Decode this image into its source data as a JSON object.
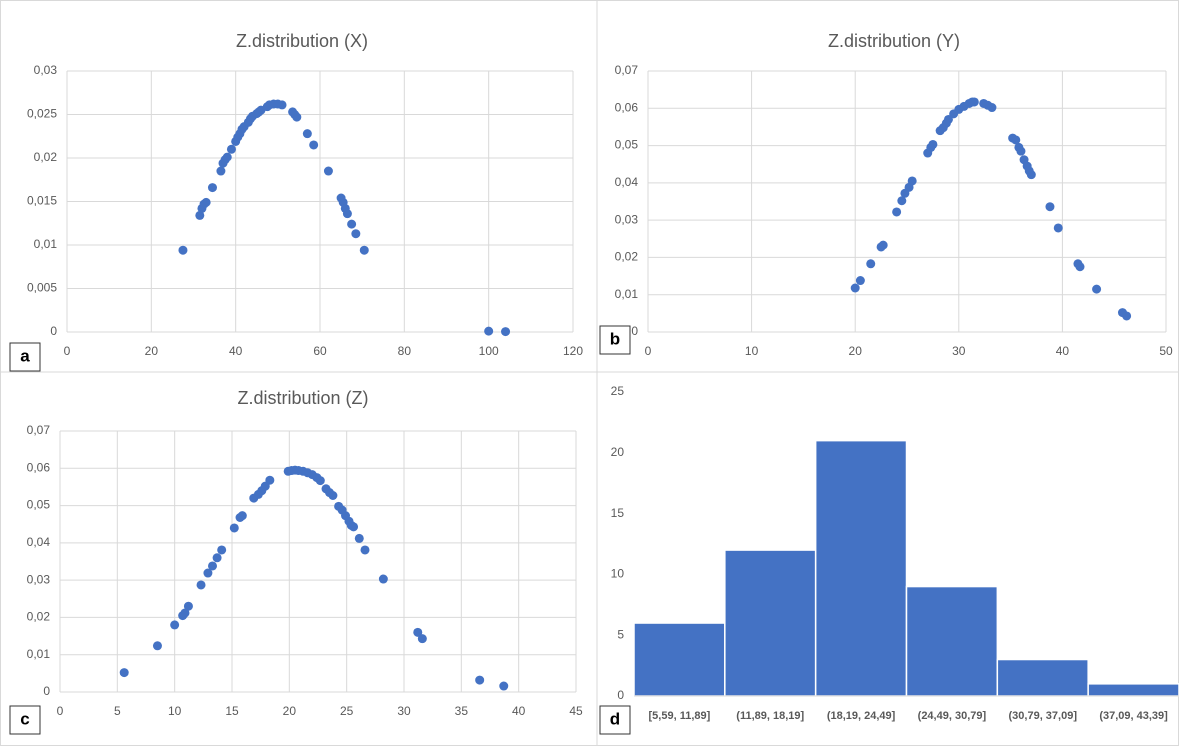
{
  "chart_data": [
    {
      "type": "scatter",
      "panel": "a",
      "title": "Z.distribution (X)",
      "color": "#4472c4",
      "grid": true,
      "xlim": [
        0,
        120
      ],
      "xticks": [
        0,
        20,
        40,
        60,
        80,
        100,
        120
      ],
      "ylim": [
        0,
        0.03
      ],
      "yticks": [
        0,
        {
          "value": 0.005,
          "label": "0,005"
        },
        {
          "value": 0.01,
          "label": "0,01"
        },
        {
          "value": 0.015,
          "label": "0,015"
        },
        {
          "value": 0.02,
          "label": "0,02"
        },
        {
          "value": 0.025,
          "label": "0,025"
        },
        {
          "value": 0.03,
          "label": "0,03"
        }
      ],
      "x": [
        27.5,
        31.5,
        32,
        32.5,
        33,
        34.5,
        36.5,
        37,
        37.5,
        38,
        39,
        40,
        40.5,
        41,
        41.5,
        42,
        43,
        43.5,
        44,
        45,
        45.5,
        46,
        47.5,
        48,
        49,
        50,
        51,
        53.5,
        54,
        54.5,
        57,
        58.5,
        62,
        65,
        65.5,
        66,
        66.5,
        67.5,
        68.5,
        70.5,
        100,
        104
      ],
      "values": [
        0.0094,
        0.0134,
        0.0142,
        0.0147,
        0.0149,
        0.0166,
        0.0185,
        0.0194,
        0.0198,
        0.0201,
        0.021,
        0.0219,
        0.0224,
        0.0228,
        0.0233,
        0.0236,
        0.0241,
        0.0245,
        0.0248,
        0.0251,
        0.0253,
        0.0255,
        0.0259,
        0.0261,
        0.0262,
        0.0262,
        0.0261,
        0.0253,
        0.025,
        0.0247,
        0.0228,
        0.0215,
        0.0185,
        0.0154,
        0.0149,
        0.0142,
        0.0136,
        0.0124,
        0.0113,
        0.0094,
        0.0001,
        5e-05
      ]
    },
    {
      "type": "scatter",
      "panel": "b",
      "title": "Z.distribution (Y)",
      "color": "#4472c4",
      "grid": true,
      "xlim": [
        0,
        50
      ],
      "xticks": [
        0,
        10,
        20,
        30,
        40,
        50
      ],
      "ylim": [
        0,
        0.07
      ],
      "yticks": [
        0,
        {
          "value": 0.01,
          "label": "0,01"
        },
        {
          "value": 0.02,
          "label": "0,02"
        },
        {
          "value": 0.03,
          "label": "0,03"
        },
        {
          "value": 0.04,
          "label": "0,04"
        },
        {
          "value": 0.05,
          "label": "0,05"
        },
        {
          "value": 0.06,
          "label": "0,06"
        },
        {
          "value": 0.07,
          "label": "0,07"
        }
      ],
      "x": [
        20,
        20.5,
        21.5,
        22.5,
        22.7,
        24,
        24.5,
        24.8,
        25.2,
        25.5,
        27,
        27.3,
        27.5,
        28.2,
        28.5,
        28.8,
        29,
        29.5,
        30,
        30.5,
        31,
        31.3,
        31.5,
        32.4,
        32.8,
        33.2,
        35.2,
        35.5,
        35.8,
        36,
        36.3,
        36.6,
        36.8,
        37,
        38.8,
        39.6,
        41.5,
        41.7,
        43.3,
        45.8,
        46.2
      ],
      "values": [
        0.0118,
        0.0138,
        0.0183,
        0.0228,
        0.0233,
        0.0322,
        0.0352,
        0.0372,
        0.0388,
        0.0405,
        0.048,
        0.0495,
        0.0503,
        0.054,
        0.0548,
        0.056,
        0.057,
        0.0585,
        0.0597,
        0.0605,
        0.0613,
        0.0617,
        0.0617,
        0.0613,
        0.0608,
        0.0602,
        0.052,
        0.0515,
        0.0495,
        0.0485,
        0.0462,
        0.0445,
        0.0432,
        0.0422,
        0.0336,
        0.0279,
        0.0183,
        0.0175,
        0.0115,
        0.0052,
        0.0043
      ]
    },
    {
      "type": "scatter",
      "panel": "c",
      "title": "Z.distribution (Z)",
      "color": "#4472c4",
      "grid": true,
      "xlim": [
        0,
        45
      ],
      "xticks": [
        0,
        5,
        10,
        15,
        20,
        25,
        30,
        35,
        40,
        45
      ],
      "ylim": [
        0,
        0.07
      ],
      "yticks": [
        0,
        {
          "value": 0.01,
          "label": "0,01"
        },
        {
          "value": 0.02,
          "label": "0,02"
        },
        {
          "value": 0.03,
          "label": "0,03"
        },
        {
          "value": 0.04,
          "label": "0,04"
        },
        {
          "value": 0.05,
          "label": "0,05"
        },
        {
          "value": 0.06,
          "label": "0,06"
        },
        {
          "value": 0.07,
          "label": "0,07"
        }
      ],
      "x": [
        5.6,
        8.5,
        10,
        10.7,
        10.9,
        11.2,
        12.3,
        12.9,
        13.3,
        13.7,
        14.1,
        15.2,
        15.7,
        15.9,
        16.9,
        17.3,
        17.6,
        17.9,
        18.3,
        19.9,
        20.2,
        20.5,
        20.8,
        21.2,
        21.6,
        22,
        22.4,
        22.7,
        23.2,
        23.5,
        23.8,
        24.3,
        24.6,
        24.9,
        25.2,
        25.4,
        25.6,
        26.1,
        26.6,
        28.2,
        31.2,
        31.6,
        36.6,
        38.7
      ],
      "values": [
        0.0052,
        0.0124,
        0.018,
        0.0205,
        0.0212,
        0.023,
        0.0287,
        0.0319,
        0.0338,
        0.036,
        0.0381,
        0.044,
        0.0468,
        0.0473,
        0.052,
        0.053,
        0.054,
        0.0552,
        0.0568,
        0.0592,
        0.0594,
        0.0595,
        0.0594,
        0.0592,
        0.0588,
        0.0583,
        0.0575,
        0.0567,
        0.0545,
        0.0535,
        0.0527,
        0.0498,
        0.0488,
        0.0473,
        0.0458,
        0.0447,
        0.0443,
        0.0412,
        0.0381,
        0.0303,
        0.016,
        0.0143,
        0.0032,
        0.0016
      ]
    },
    {
      "type": "histogram",
      "panel": "d",
      "color": "#4472c4",
      "grid": false,
      "ylim": [
        0,
        25
      ],
      "yticks": [
        0,
        5,
        10,
        15,
        20,
        25
      ],
      "categories": [
        "[5,59, 11,89]",
        "(11,89, 18,19]",
        "(18,19, 24,49]",
        "(24,49, 30,79]",
        "(30,79, 37,09]",
        "(37,09, 43,39]"
      ],
      "values": [
        6,
        12,
        21,
        9,
        3,
        1
      ]
    }
  ]
}
